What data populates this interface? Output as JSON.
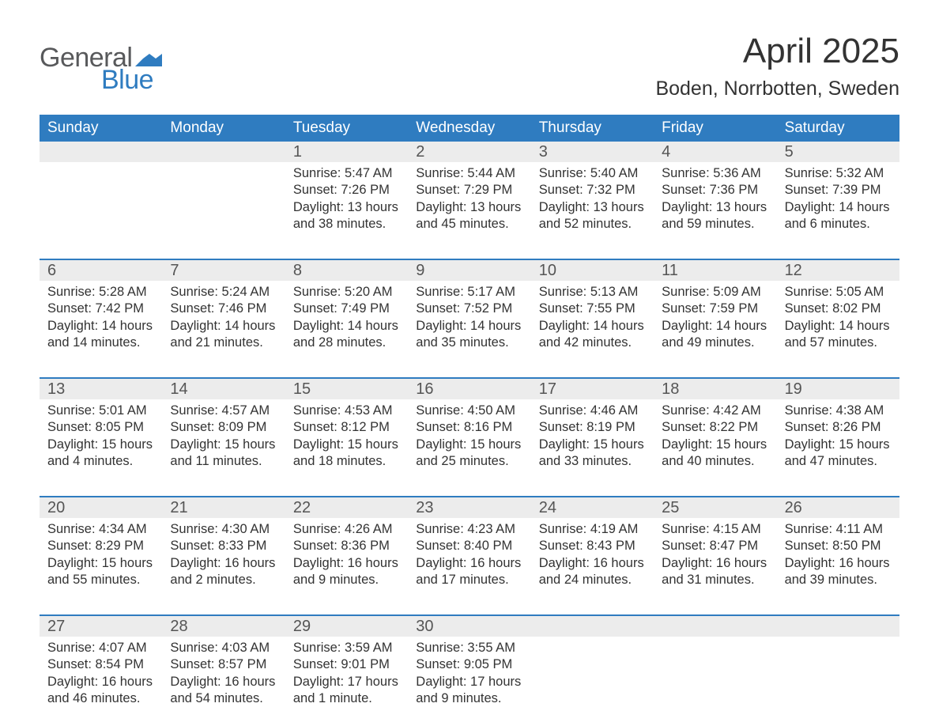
{
  "logo": {
    "text_general": "General",
    "text_blue": "Blue",
    "flag_color": "#2f7cc0",
    "general_color": "#58595b"
  },
  "title": {
    "month": "April 2025",
    "location": "Boden, Norrbotten, Sweden"
  },
  "colors": {
    "header_bg": "#2f7cc0",
    "daynum_bg": "#ececec",
    "week_divider": "#2f7cc0",
    "text": "#333333",
    "background": "#ffffff"
  },
  "fonts": {
    "title_month_size": 44,
    "title_location_size": 25,
    "weekday_size": 19,
    "daynum_size": 20,
    "body_size": 16.5
  },
  "weekdays": [
    "Sunday",
    "Monday",
    "Tuesday",
    "Wednesday",
    "Thursday",
    "Friday",
    "Saturday"
  ],
  "weeks": [
    {
      "days": [
        {
          "num": "",
          "sunrise": "",
          "sunset": "",
          "daylight": ""
        },
        {
          "num": "",
          "sunrise": "",
          "sunset": "",
          "daylight": ""
        },
        {
          "num": "1",
          "sunrise": "Sunrise: 5:47 AM",
          "sunset": "Sunset: 7:26 PM",
          "daylight": "Daylight: 13 hours and 38 minutes."
        },
        {
          "num": "2",
          "sunrise": "Sunrise: 5:44 AM",
          "sunset": "Sunset: 7:29 PM",
          "daylight": "Daylight: 13 hours and 45 minutes."
        },
        {
          "num": "3",
          "sunrise": "Sunrise: 5:40 AM",
          "sunset": "Sunset: 7:32 PM",
          "daylight": "Daylight: 13 hours and 52 minutes."
        },
        {
          "num": "4",
          "sunrise": "Sunrise: 5:36 AM",
          "sunset": "Sunset: 7:36 PM",
          "daylight": "Daylight: 13 hours and 59 minutes."
        },
        {
          "num": "5",
          "sunrise": "Sunrise: 5:32 AM",
          "sunset": "Sunset: 7:39 PM",
          "daylight": "Daylight: 14 hours and 6 minutes."
        }
      ]
    },
    {
      "days": [
        {
          "num": "6",
          "sunrise": "Sunrise: 5:28 AM",
          "sunset": "Sunset: 7:42 PM",
          "daylight": "Daylight: 14 hours and 14 minutes."
        },
        {
          "num": "7",
          "sunrise": "Sunrise: 5:24 AM",
          "sunset": "Sunset: 7:46 PM",
          "daylight": "Daylight: 14 hours and 21 minutes."
        },
        {
          "num": "8",
          "sunrise": "Sunrise: 5:20 AM",
          "sunset": "Sunset: 7:49 PM",
          "daylight": "Daylight: 14 hours and 28 minutes."
        },
        {
          "num": "9",
          "sunrise": "Sunrise: 5:17 AM",
          "sunset": "Sunset: 7:52 PM",
          "daylight": "Daylight: 14 hours and 35 minutes."
        },
        {
          "num": "10",
          "sunrise": "Sunrise: 5:13 AM",
          "sunset": "Sunset: 7:55 PM",
          "daylight": "Daylight: 14 hours and 42 minutes."
        },
        {
          "num": "11",
          "sunrise": "Sunrise: 5:09 AM",
          "sunset": "Sunset: 7:59 PM",
          "daylight": "Daylight: 14 hours and 49 minutes."
        },
        {
          "num": "12",
          "sunrise": "Sunrise: 5:05 AM",
          "sunset": "Sunset: 8:02 PM",
          "daylight": "Daylight: 14 hours and 57 minutes."
        }
      ]
    },
    {
      "days": [
        {
          "num": "13",
          "sunrise": "Sunrise: 5:01 AM",
          "sunset": "Sunset: 8:05 PM",
          "daylight": "Daylight: 15 hours and 4 minutes."
        },
        {
          "num": "14",
          "sunrise": "Sunrise: 4:57 AM",
          "sunset": "Sunset: 8:09 PM",
          "daylight": "Daylight: 15 hours and 11 minutes."
        },
        {
          "num": "15",
          "sunrise": "Sunrise: 4:53 AM",
          "sunset": "Sunset: 8:12 PM",
          "daylight": "Daylight: 15 hours and 18 minutes."
        },
        {
          "num": "16",
          "sunrise": "Sunrise: 4:50 AM",
          "sunset": "Sunset: 8:16 PM",
          "daylight": "Daylight: 15 hours and 25 minutes."
        },
        {
          "num": "17",
          "sunrise": "Sunrise: 4:46 AM",
          "sunset": "Sunset: 8:19 PM",
          "daylight": "Daylight: 15 hours and 33 minutes."
        },
        {
          "num": "18",
          "sunrise": "Sunrise: 4:42 AM",
          "sunset": "Sunset: 8:22 PM",
          "daylight": "Daylight: 15 hours and 40 minutes."
        },
        {
          "num": "19",
          "sunrise": "Sunrise: 4:38 AM",
          "sunset": "Sunset: 8:26 PM",
          "daylight": "Daylight: 15 hours and 47 minutes."
        }
      ]
    },
    {
      "days": [
        {
          "num": "20",
          "sunrise": "Sunrise: 4:34 AM",
          "sunset": "Sunset: 8:29 PM",
          "daylight": "Daylight: 15 hours and 55 minutes."
        },
        {
          "num": "21",
          "sunrise": "Sunrise: 4:30 AM",
          "sunset": "Sunset: 8:33 PM",
          "daylight": "Daylight: 16 hours and 2 minutes."
        },
        {
          "num": "22",
          "sunrise": "Sunrise: 4:26 AM",
          "sunset": "Sunset: 8:36 PM",
          "daylight": "Daylight: 16 hours and 9 minutes."
        },
        {
          "num": "23",
          "sunrise": "Sunrise: 4:23 AM",
          "sunset": "Sunset: 8:40 PM",
          "daylight": "Daylight: 16 hours and 17 minutes."
        },
        {
          "num": "24",
          "sunrise": "Sunrise: 4:19 AM",
          "sunset": "Sunset: 8:43 PM",
          "daylight": "Daylight: 16 hours and 24 minutes."
        },
        {
          "num": "25",
          "sunrise": "Sunrise: 4:15 AM",
          "sunset": "Sunset: 8:47 PM",
          "daylight": "Daylight: 16 hours and 31 minutes."
        },
        {
          "num": "26",
          "sunrise": "Sunrise: 4:11 AM",
          "sunset": "Sunset: 8:50 PM",
          "daylight": "Daylight: 16 hours and 39 minutes."
        }
      ]
    },
    {
      "days": [
        {
          "num": "27",
          "sunrise": "Sunrise: 4:07 AM",
          "sunset": "Sunset: 8:54 PM",
          "daylight": "Daylight: 16 hours and 46 minutes."
        },
        {
          "num": "28",
          "sunrise": "Sunrise: 4:03 AM",
          "sunset": "Sunset: 8:57 PM",
          "daylight": "Daylight: 16 hours and 54 minutes."
        },
        {
          "num": "29",
          "sunrise": "Sunrise: 3:59 AM",
          "sunset": "Sunset: 9:01 PM",
          "daylight": "Daylight: 17 hours and 1 minute."
        },
        {
          "num": "30",
          "sunrise": "Sunrise: 3:55 AM",
          "sunset": "Sunset: 9:05 PM",
          "daylight": "Daylight: 17 hours and 9 minutes."
        },
        {
          "num": "",
          "sunrise": "",
          "sunset": "",
          "daylight": ""
        },
        {
          "num": "",
          "sunrise": "",
          "sunset": "",
          "daylight": ""
        },
        {
          "num": "",
          "sunrise": "",
          "sunset": "",
          "daylight": ""
        }
      ]
    }
  ]
}
